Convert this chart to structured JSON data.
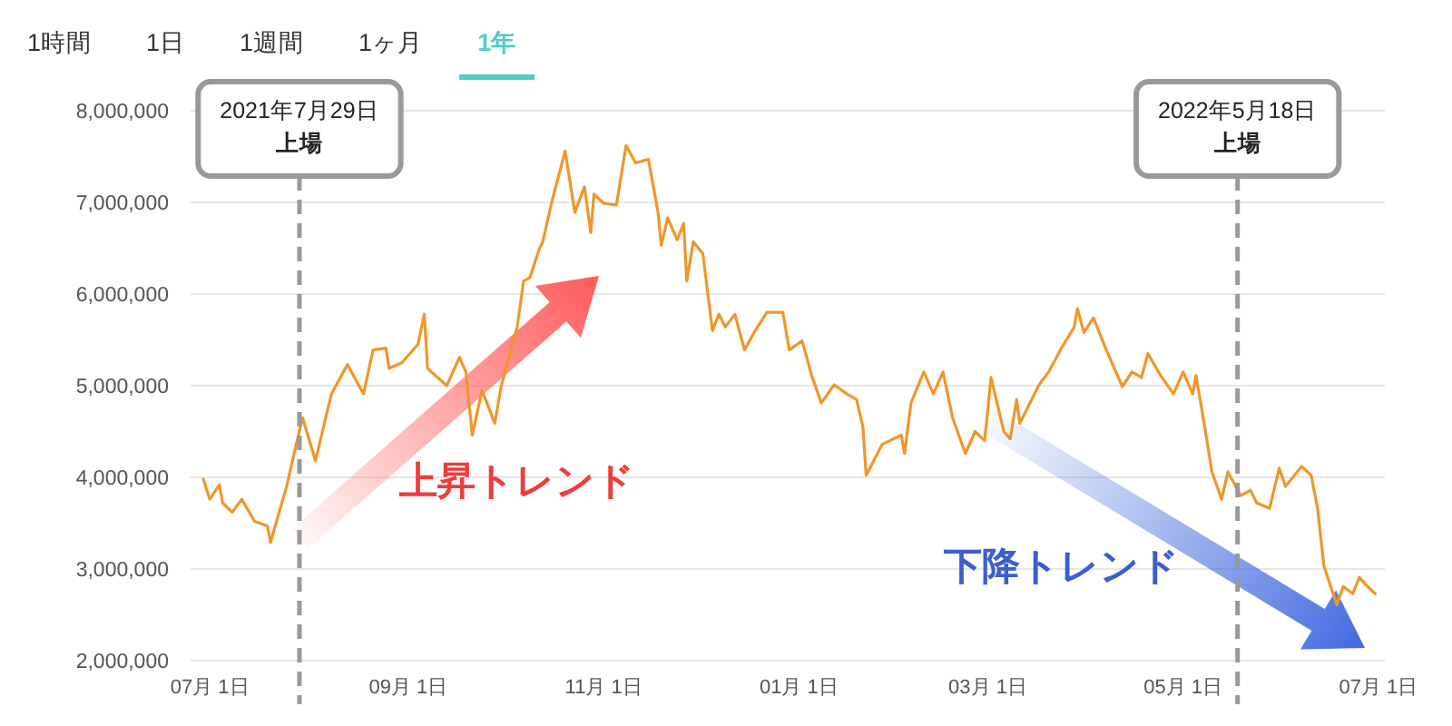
{
  "chart_data": {
    "type": "line",
    "annotations": [
      "1時間",
      "1日",
      "1週間",
      "1ヶ月",
      "1年",
      "上昇トレンド",
      "下降トレンド"
    ],
    "x": [
      "2021-06-29",
      "2021-07-01",
      "2021-07-04",
      "2021-07-05",
      "2021-07-08",
      "2021-07-11",
      "2021-07-15",
      "2021-07-19",
      "2021-07-20",
      "2021-07-22",
      "2021-07-25",
      "2021-07-28",
      "2021-07-30",
      "2021-08-03",
      "2021-08-08",
      "2021-08-13",
      "2021-08-18",
      "2021-08-21",
      "2021-08-25",
      "2021-08-26",
      "2021-08-30",
      "2021-09-04",
      "2021-09-06",
      "2021-09-07",
      "2021-09-13",
      "2021-09-17",
      "2021-09-19",
      "2021-09-21",
      "2021-09-24",
      "2021-09-28",
      "2021-09-30",
      "2021-10-05",
      "2021-10-07",
      "2021-10-09",
      "2021-10-12",
      "2021-10-13",
      "2021-10-16",
      "2021-10-20",
      "2021-10-23",
      "2021-10-26",
      "2021-10-28",
      "2021-10-29",
      "2021-11-01",
      "2021-11-05",
      "2021-11-08",
      "2021-11-11",
      "2021-11-15",
      "2021-11-18",
      "2021-11-19",
      "2021-11-21",
      "2021-11-24",
      "2021-11-26",
      "2021-11-27",
      "2021-11-29",
      "2021-12-02",
      "2021-12-05",
      "2021-12-07",
      "2021-12-09",
      "2021-12-12",
      "2021-12-15",
      "2021-12-18",
      "2021-12-22",
      "2021-12-27",
      "2021-12-29",
      "2022-01-02",
      "2022-01-05",
      "2022-01-08",
      "2022-01-12",
      "2022-01-16",
      "2022-01-19",
      "2022-01-21",
      "2022-01-22",
      "2022-01-27",
      "2022-02-02",
      "2022-02-03",
      "2022-02-05",
      "2022-02-09",
      "2022-02-12",
      "2022-02-15",
      "2022-02-18",
      "2022-02-22",
      "2022-02-25",
      "2022-02-28",
      "2022-03-02",
      "2022-03-06",
      "2022-03-08",
      "2022-03-10",
      "2022-03-11",
      "2022-03-17",
      "2022-03-20",
      "2022-03-24",
      "2022-03-28",
      "2022-03-29",
      "2022-03-31",
      "2022-04-03",
      "2022-04-07",
      "2022-04-12",
      "2022-04-15",
      "2022-04-18",
      "2022-04-20",
      "2022-04-24",
      "2022-04-28",
      "2022-05-01",
      "2022-05-04",
      "2022-05-05",
      "2022-05-07",
      "2022-05-10",
      "2022-05-13",
      "2022-05-15",
      "2022-05-19",
      "2022-05-22",
      "2022-05-24",
      "2022-05-28",
      "2022-05-31",
      "2022-06-02",
      "2022-06-07",
      "2022-06-10",
      "2022-06-12",
      "2022-06-14",
      "2022-06-18",
      "2022-06-20",
      "2022-06-23",
      "2022-06-25",
      "2022-06-27",
      "2022-06-30"
    ],
    "series": [
      {
        "color": "#f0962a",
        "values": [
          3980000,
          3760000,
          3920000,
          3720000,
          3620000,
          3760000,
          3520000,
          3470000,
          3290000,
          3540000,
          3900000,
          4360000,
          4650000,
          4180000,
          4910000,
          5230000,
          4910000,
          5390000,
          5410000,
          5190000,
          5250000,
          5450000,
          5780000,
          5190000,
          5000000,
          5310000,
          5150000,
          4460000,
          4950000,
          4590000,
          4990000,
          5640000,
          6140000,
          6180000,
          6500000,
          6570000,
          7030000,
          7560000,
          6890000,
          7170000,
          6670000,
          7090000,
          6990000,
          6970000,
          7620000,
          7430000,
          7470000,
          6890000,
          6530000,
          6830000,
          6590000,
          6770000,
          6140000,
          6570000,
          6440000,
          5600000,
          5780000,
          5640000,
          5780000,
          5390000,
          5580000,
          5800000,
          5800000,
          5390000,
          5490000,
          5110000,
          4810000,
          5010000,
          4910000,
          4850000,
          4550000,
          4020000,
          4360000,
          4460000,
          4260000,
          4810000,
          5150000,
          4910000,
          5150000,
          4650000,
          4260000,
          4500000,
          4400000,
          5090000,
          4500000,
          4420000,
          4850000,
          4590000,
          5010000,
          5150000,
          5410000,
          5640000,
          5840000,
          5580000,
          5740000,
          5390000,
          4990000,
          5150000,
          5090000,
          5350000,
          5110000,
          4910000,
          5150000,
          4910000,
          5110000,
          4710000,
          4060000,
          3760000,
          4060000,
          3800000,
          3860000,
          3720000,
          3660000,
          4100000,
          3900000,
          4120000,
          4020000,
          3660000,
          3030000,
          2610000,
          2810000,
          2730000,
          2910000,
          2830000,
          2730000
        ]
      }
    ],
    "xlim": [
      "2021-06-25",
      "2022-07-03"
    ],
    "xticks": [
      {
        "value": "2021-07-01",
        "label": "07月 1日"
      },
      {
        "value": "2021-09-01",
        "label": "09月 1日"
      },
      {
        "value": "2021-11-01",
        "label": "11月 1日"
      },
      {
        "value": "2022-01-01",
        "label": "01月 1日"
      },
      {
        "value": "2022-03-01",
        "label": "03月 1日"
      },
      {
        "value": "2022-05-01",
        "label": "05月 1日"
      },
      {
        "value": "2022-07-01",
        "label": "07月 1日"
      }
    ],
    "ylim": [
      2000000,
      8000000
    ],
    "yticks": [
      {
        "value": 2000000,
        "label": "2,000,000"
      },
      {
        "value": 3000000,
        "label": "3,000,000"
      },
      {
        "value": 4000000,
        "label": "4,000,000"
      },
      {
        "value": 5000000,
        "label": "5,000,000"
      },
      {
        "value": 6000000,
        "label": "6,000,000"
      },
      {
        "value": 7000000,
        "label": "7,000,000"
      },
      {
        "value": 8000000,
        "label": "8,000,000"
      }
    ],
    "ref_lines": [
      {
        "axis": "x",
        "value": "2021-07-29",
        "label": "2021年7月29日上場",
        "color": "#999999",
        "line_style": "dashed"
      },
      {
        "axis": "x",
        "value": "2022-05-18",
        "label": "2022年5月18日上場",
        "color": "#999999",
        "line_style": "dashed"
      }
    ],
    "grid": "y",
    "marker": "none",
    "line_style": "solid"
  }
}
